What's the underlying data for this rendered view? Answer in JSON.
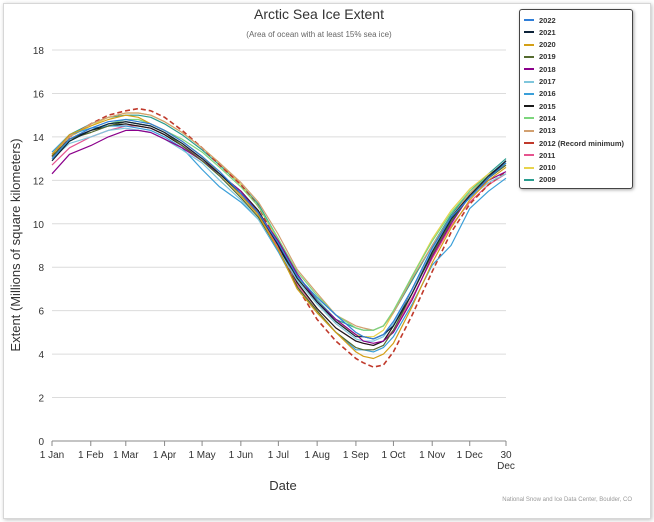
{
  "chart_data": {
    "type": "line",
    "title": "Arctic Sea Ice Extent",
    "subtitle": "(Area of ocean with at least 15% sea ice)",
    "xlabel": "Date",
    "ylabel": "Extent (Millions of square kilometers)",
    "credit": "National Snow and Ice Data Center, Boulder, CO",
    "ylim": [
      0,
      18
    ],
    "xlim": [
      1,
      364
    ],
    "yticks": [
      "0",
      "2",
      "4",
      "6",
      "8",
      "10",
      "12",
      "14",
      "16",
      "18"
    ],
    "xticks": [
      {
        "day": 1,
        "label": "1 Jan"
      },
      {
        "day": 32,
        "label": "1 Feb"
      },
      {
        "day": 60,
        "label": "1 Mar"
      },
      {
        "day": 91,
        "label": "1 Apr"
      },
      {
        "day": 121,
        "label": "1 May"
      },
      {
        "day": 152,
        "label": "1 Jun"
      },
      {
        "day": 182,
        "label": "1 Jul"
      },
      {
        "day": 213,
        "label": "1 Aug"
      },
      {
        "day": 244,
        "label": "1 Sep"
      },
      {
        "day": 274,
        "label": "1 Oct"
      },
      {
        "day": 305,
        "label": "1 Nov"
      },
      {
        "day": 335,
        "label": "1 Dec"
      },
      {
        "day": 364,
        "label": "30",
        "label2": "Dec"
      }
    ],
    "legend_position": "top-right",
    "x": [
      1,
      15,
      32,
      46,
      60,
      70,
      80,
      91,
      105,
      121,
      135,
      152,
      166,
      182,
      197,
      213,
      228,
      244,
      250,
      258,
      266,
      274,
      289,
      305,
      320,
      335,
      350,
      364
    ],
    "series": [
      {
        "name": "2022",
        "color": "#2f7ed8",
        "dashed": false,
        "values": [
          13.0,
          13.9,
          14.4,
          14.7,
          14.8,
          14.7,
          14.6,
          14.3,
          13.8,
          13.1,
          12.4,
          11.4,
          10.5,
          9.1,
          7.6,
          6.6,
          5.8,
          5.0,
          4.8,
          4.7,
          4.9,
          5.5,
          7.0,
          8.9,
          10.3,
          11.2,
          12.1,
          12.8
        ]
      },
      {
        "name": "2021",
        "color": "#0d233a",
        "dashed": false,
        "values": [
          12.9,
          13.8,
          14.3,
          14.6,
          14.7,
          14.6,
          14.5,
          14.2,
          13.7,
          13.0,
          12.3,
          11.4,
          10.5,
          9.0,
          7.5,
          6.4,
          5.5,
          4.8,
          4.8,
          4.7,
          4.9,
          5.3,
          6.8,
          8.7,
          10.2,
          11.3,
          12.2,
          12.9
        ]
      },
      {
        "name": "2020",
        "color": "#d4a017",
        "dashed": false,
        "values": [
          13.2,
          14.1,
          14.5,
          14.8,
          15.0,
          14.9,
          14.6,
          14.3,
          13.8,
          13.1,
          12.3,
          11.3,
          10.4,
          8.8,
          7.0,
          5.9,
          5.0,
          4.1,
          3.9,
          3.8,
          4.0,
          4.5,
          6.2,
          8.2,
          9.8,
          11.1,
          12.0,
          12.6
        ]
      },
      {
        "name": "2019",
        "color": "#556b2f",
        "dashed": false,
        "values": [
          13.1,
          13.9,
          14.2,
          14.5,
          14.7,
          14.6,
          14.5,
          14.2,
          13.6,
          12.9,
          12.2,
          11.2,
          10.3,
          8.8,
          7.1,
          6.0,
          5.0,
          4.3,
          4.2,
          4.2,
          4.4,
          5.1,
          6.8,
          8.6,
          10.1,
          11.3,
          12.1,
          12.7
        ]
      },
      {
        "name": "2018",
        "color": "#8b008b",
        "dashed": false,
        "values": [
          12.3,
          13.2,
          13.6,
          14.0,
          14.3,
          14.3,
          14.2,
          13.9,
          13.5,
          12.9,
          12.3,
          11.5,
          10.5,
          9.2,
          7.7,
          6.4,
          5.6,
          4.9,
          4.6,
          4.5,
          4.6,
          5.0,
          6.5,
          8.5,
          10.0,
          11.3,
          12.0,
          12.4
        ]
      },
      {
        "name": "2017",
        "color": "#7fc6dc",
        "dashed": false,
        "values": [
          13.0,
          13.7,
          14.0,
          14.3,
          14.4,
          14.3,
          14.2,
          13.9,
          13.4,
          12.8,
          12.0,
          11.1,
          10.2,
          8.8,
          7.4,
          6.3,
          5.4,
          4.7,
          4.6,
          4.6,
          4.8,
          5.4,
          7.0,
          8.8,
          10.2,
          11.2,
          11.9,
          12.3
        ]
      },
      {
        "name": "2016",
        "color": "#3a9fd9",
        "dashed": false,
        "values": [
          13.3,
          14.1,
          14.4,
          14.5,
          14.5,
          14.4,
          14.3,
          14.0,
          13.5,
          12.5,
          11.7,
          11.0,
          10.2,
          8.7,
          7.1,
          5.9,
          5.0,
          4.2,
          4.2,
          4.1,
          4.3,
          4.8,
          6.3,
          8.1,
          9.0,
          10.7,
          11.5,
          12.1
        ]
      },
      {
        "name": "2015",
        "color": "#1a1a1a",
        "dashed": false,
        "values": [
          13.1,
          13.9,
          14.3,
          14.5,
          14.6,
          14.5,
          14.4,
          14.1,
          13.6,
          12.9,
          12.3,
          11.5,
          10.6,
          9.0,
          7.3,
          6.1,
          5.2,
          4.6,
          4.5,
          4.4,
          4.6,
          5.3,
          7.0,
          8.8,
          10.3,
          11.3,
          12.1,
          12.9
        ]
      },
      {
        "name": "2014",
        "color": "#7cd67c",
        "dashed": false,
        "values": [
          13.0,
          13.8,
          14.3,
          14.6,
          14.8,
          14.8,
          14.6,
          14.3,
          13.9,
          13.3,
          12.6,
          11.7,
          10.8,
          9.3,
          7.8,
          6.7,
          5.8,
          5.2,
          5.1,
          5.1,
          5.3,
          6.0,
          7.6,
          9.2,
          10.5,
          11.5,
          12.2,
          12.8
        ]
      },
      {
        "name": "2013",
        "color": "#d2a070",
        "dashed": false,
        "values": [
          13.2,
          14.0,
          14.6,
          14.9,
          15.1,
          15.1,
          15.0,
          14.7,
          14.2,
          13.5,
          12.8,
          11.9,
          11.0,
          9.5,
          7.9,
          6.8,
          5.8,
          5.3,
          5.2,
          5.1,
          5.3,
          5.9,
          7.5,
          9.0,
          10.3,
          11.4,
          12.2,
          12.8
        ]
      },
      {
        "name": "2012 (Record minimum)",
        "color": "#c0392b",
        "dashed": true,
        "values": [
          13.1,
          14.0,
          14.6,
          15.0,
          15.2,
          15.3,
          15.2,
          14.9,
          14.3,
          13.5,
          12.7,
          11.8,
          10.8,
          9.0,
          7.1,
          5.6,
          4.6,
          3.8,
          3.6,
          3.4,
          3.5,
          4.1,
          5.8,
          7.8,
          9.6,
          10.9,
          11.8,
          12.4
        ]
      },
      {
        "name": "2011",
        "color": "#e6548f",
        "dashed": false,
        "values": [
          12.7,
          13.5,
          14.0,
          14.3,
          14.5,
          14.5,
          14.4,
          14.1,
          13.6,
          13.0,
          12.3,
          11.4,
          10.4,
          8.9,
          7.2,
          6.1,
          5.2,
          4.6,
          4.5,
          4.4,
          4.6,
          5.1,
          6.6,
          8.4,
          9.9,
          11.0,
          11.8,
          12.3
        ]
      },
      {
        "name": "2010",
        "color": "#e8d44d",
        "dashed": false,
        "values": [
          13.1,
          14.0,
          14.5,
          14.9,
          15.1,
          15.1,
          15.0,
          14.7,
          14.2,
          13.5,
          12.8,
          11.8,
          10.8,
          9.2,
          7.5,
          6.4,
          5.5,
          4.9,
          4.8,
          4.8,
          5.1,
          5.9,
          7.6,
          9.3,
          10.6,
          11.6,
          12.3,
          12.7
        ]
      },
      {
        "name": "2009",
        "color": "#2a9d8f",
        "dashed": false,
        "values": [
          13.2,
          14.1,
          14.6,
          14.9,
          15.0,
          15.0,
          14.9,
          14.6,
          14.1,
          13.4,
          12.7,
          11.8,
          10.9,
          9.3,
          7.6,
          6.5,
          5.6,
          5.2,
          5.1,
          5.1,
          5.3,
          5.9,
          7.4,
          9.0,
          10.4,
          11.5,
          12.3,
          13.0
        ]
      }
    ]
  }
}
